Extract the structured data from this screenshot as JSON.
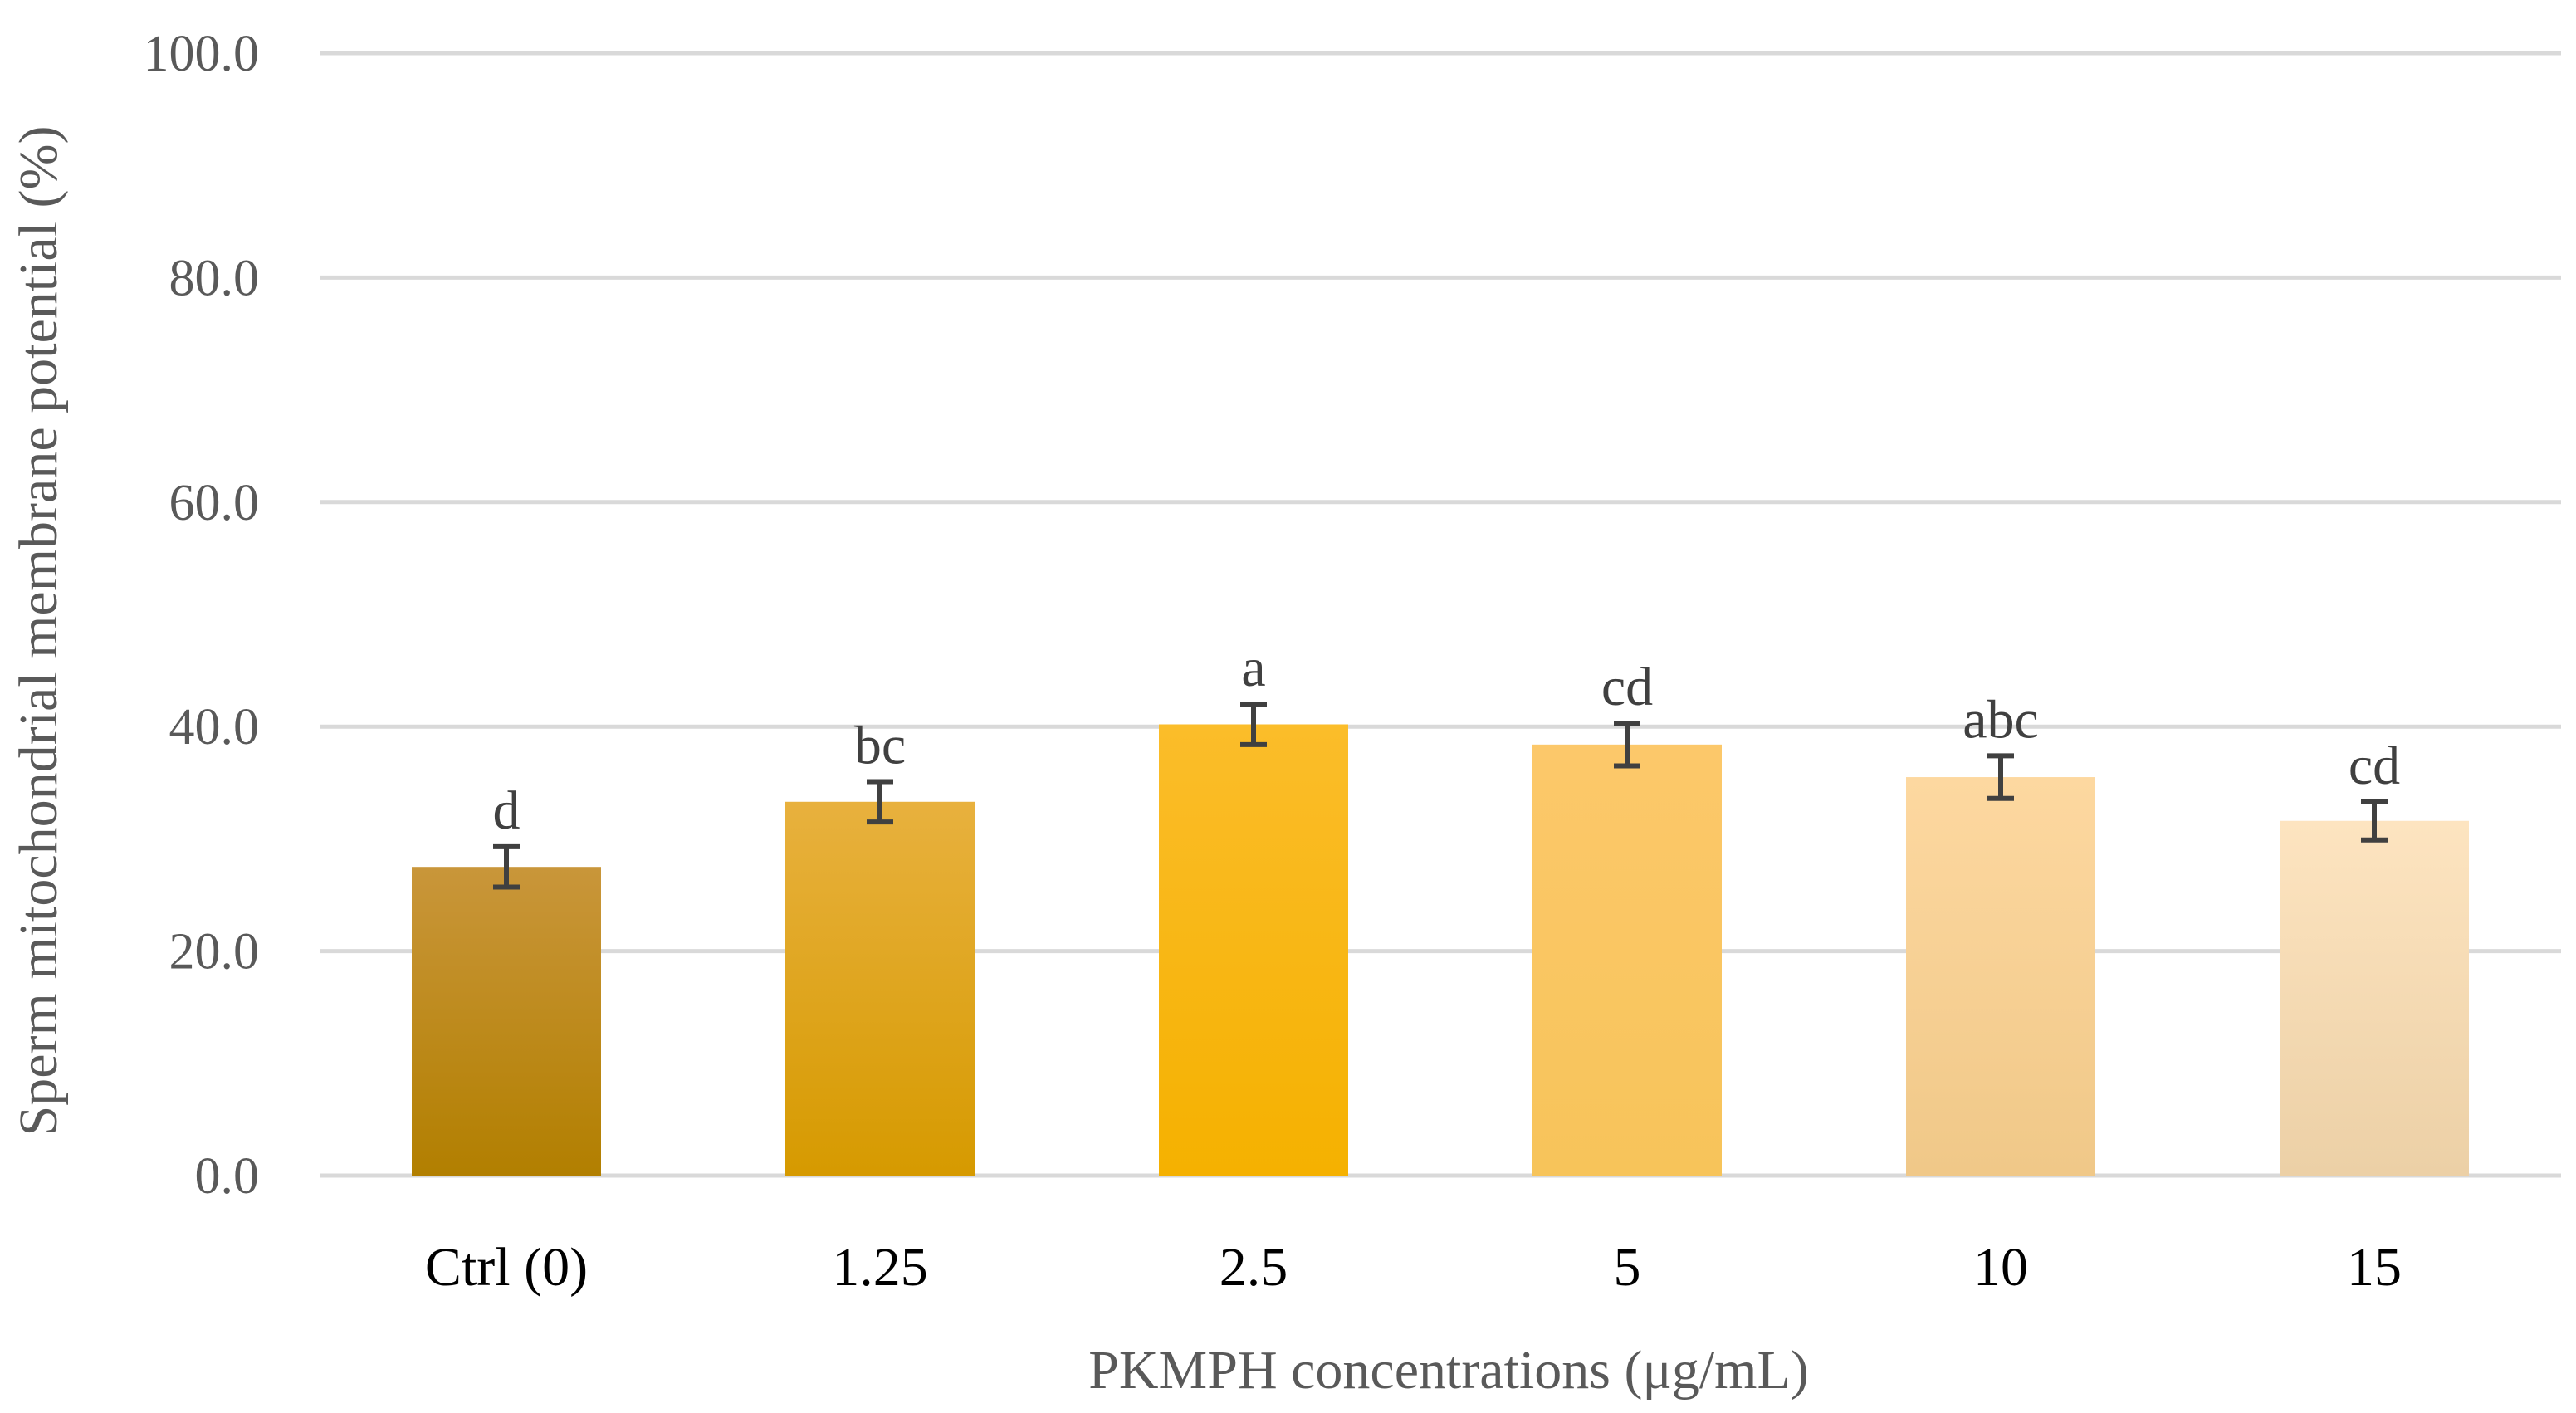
{
  "chart_data": {
    "type": "bar",
    "categories": [
      "Ctrl (0)",
      "1.25",
      "2.5",
      "5",
      "10",
      "15"
    ],
    "values": [
      27.5,
      33.3,
      40.2,
      38.4,
      35.5,
      31.6
    ],
    "errors": [
      1.8,
      1.8,
      1.8,
      1.9,
      1.9,
      1.7
    ],
    "significance": [
      "d",
      "bc",
      "a",
      "cd",
      "abc",
      "cd"
    ],
    "bar_colors": [
      [
        "#c9963a",
        "#b27f00"
      ],
      [
        "#e8b13e",
        "#d69a00"
      ],
      [
        "#fbbd2a",
        "#f5b100"
      ],
      [
        "#fcc86a",
        "#f7c45a"
      ],
      [
        "#fdd8a0",
        "#f0c888"
      ],
      [
        "#fde4c0",
        "#ecd0a6"
      ]
    ],
    "xlabel": "PKMPH concentrations  (μg/mL)",
    "ylabel": "Sperm mitochondrial membrane potential (%)",
    "ylim": [
      0,
      100
    ],
    "yticks": [
      "0.0",
      "20.0",
      "40.0",
      "60.0",
      "80.0",
      "100.0"
    ],
    "grid": true
  }
}
